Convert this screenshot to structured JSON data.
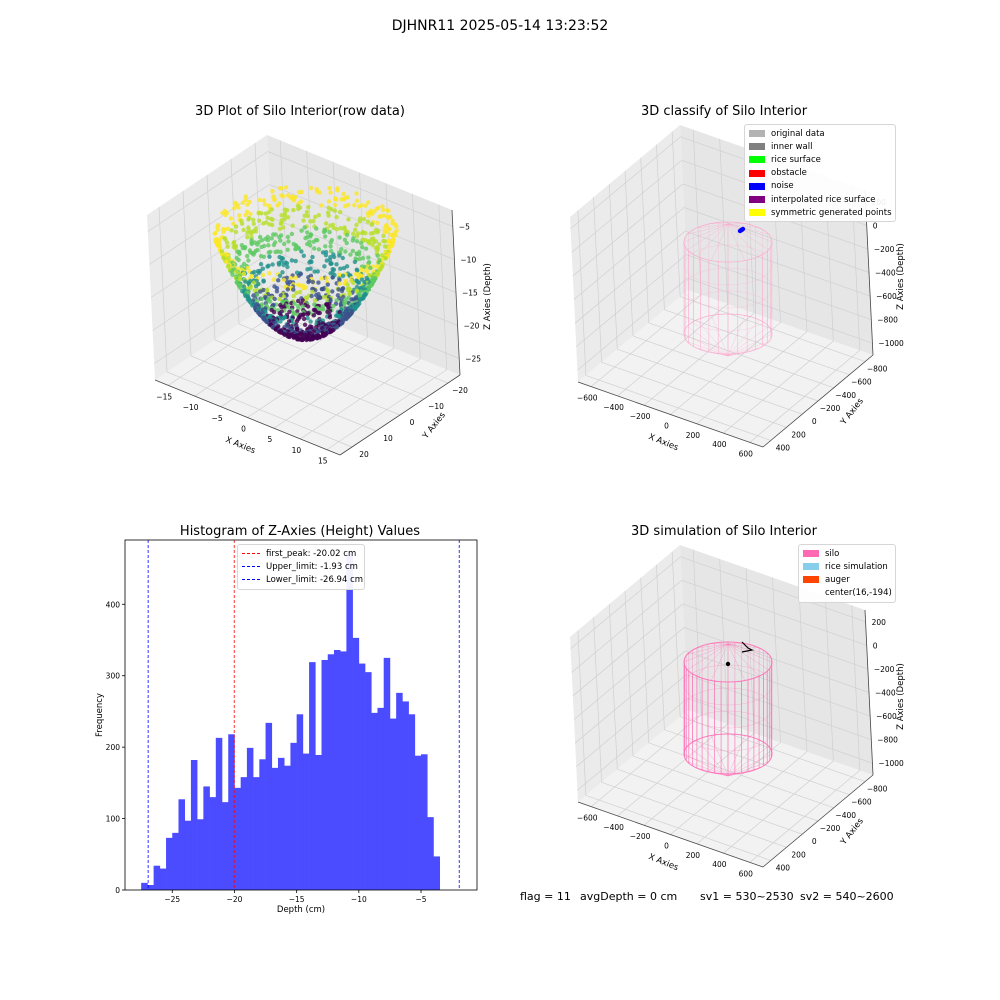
{
  "suptitle": "DJHNR11 2025-05-14 13:23:52",
  "panels": {
    "raw": {
      "title": "3D Plot of Silo Interior(row data)",
      "xlabel": "X Axies",
      "ylabel": "Y Axies",
      "zlabel": "Z Axies (Depth)",
      "xticks": [
        "−15",
        "−10",
        "−5",
        "0",
        "5",
        "10",
        "15"
      ],
      "yticks": [
        "−20",
        "−10",
        "0",
        "10",
        "20"
      ],
      "zticks": [
        "−5",
        "−10",
        "−15",
        "−20",
        "−25"
      ]
    },
    "classify": {
      "title": "3D classify of Silo Interior",
      "xlabel": "X Axies",
      "ylabel": "Y Axies",
      "zlabel": "Z Axies (Depth)",
      "xticks": [
        "−600",
        "−400",
        "−200",
        "0",
        "200",
        "400",
        "600"
      ],
      "yticks": [
        "−800",
        "−600",
        "−400",
        "−200",
        "0",
        "200",
        "400"
      ],
      "zticks": [
        "200",
        "0",
        "−200",
        "−400",
        "−600",
        "−800",
        "−1000"
      ],
      "legend": [
        {
          "label": "original data",
          "color": "#b3b3b3"
        },
        {
          "label": "inner wall",
          "color": "#808080"
        },
        {
          "label": "rice surface",
          "color": "#00ff00"
        },
        {
          "label": "obstacle",
          "color": "#ff0000"
        },
        {
          "label": "noise",
          "color": "#0000ff"
        },
        {
          "label": "interpolated rice surface",
          "color": "#800080"
        },
        {
          "label": "symmetric generated points",
          "color": "#ffff00"
        }
      ]
    },
    "simulation": {
      "title": "3D simulation of Silo Interior",
      "xlabel": "X Axies",
      "ylabel": "Y Axies",
      "zlabel": "Z Axies (Depth)",
      "xticks": [
        "−600",
        "−400",
        "−200",
        "0",
        "200",
        "400",
        "600"
      ],
      "yticks": [
        "−800",
        "−600",
        "−400",
        "−200",
        "0",
        "200",
        "400"
      ],
      "zticks": [
        "200",
        "0",
        "−200",
        "−400",
        "−600",
        "−800",
        "−1000"
      ],
      "legend": [
        {
          "label": "silo",
          "color": "#ff69b4"
        },
        {
          "label": "rice simulation",
          "color": "#87ceeb"
        },
        {
          "label": "auger",
          "color": "#ff4500"
        },
        {
          "label": "center(16,-194)",
          "color": ""
        }
      ]
    }
  },
  "footer": {
    "flag": "flag = 11",
    "avg": "avgDepth = 0 cm",
    "sv1": "sv1 = 530~2530",
    "sv2": "sv2 = 540~2600"
  },
  "chart_data": {
    "type": "bar",
    "title": "Histogram of Z-Axies (Height) Values",
    "xlabel": "Depth (cm)",
    "ylabel": "Frequency",
    "xlim": [
      -28.8,
      -0.5
    ],
    "ylim": [
      0,
      490
    ],
    "xticks": [
      -25,
      -20,
      -15,
      -10,
      -5
    ],
    "yticks": [
      0,
      100,
      200,
      300,
      400
    ],
    "bin_start": -28.0,
    "bin_width": 0.5,
    "color": "#4b4bff",
    "values": [
      0,
      10,
      7,
      34,
      30,
      73,
      80,
      127,
      97,
      182,
      99,
      145,
      130,
      213,
      123,
      218,
      143,
      158,
      199,
      158,
      183,
      234,
      171,
      185,
      174,
      206,
      246,
      191,
      319,
      189,
      322,
      330,
      336,
      334,
      471,
      353,
      317,
      305,
      248,
      255,
      325,
      240,
      276,
      264,
      246,
      188,
      190,
      102,
      47
    ],
    "vlines": [
      {
        "label": "first_peak: -20.02 cm",
        "value": -20.02,
        "color": "#ff0000"
      },
      {
        "label": "Upper_limit: -1.93 cm",
        "value": -1.93,
        "color": "#0000ff"
      },
      {
        "label": "Lower_limit: -26.94 cm",
        "value": -26.94,
        "color": "#0000ff"
      }
    ]
  }
}
